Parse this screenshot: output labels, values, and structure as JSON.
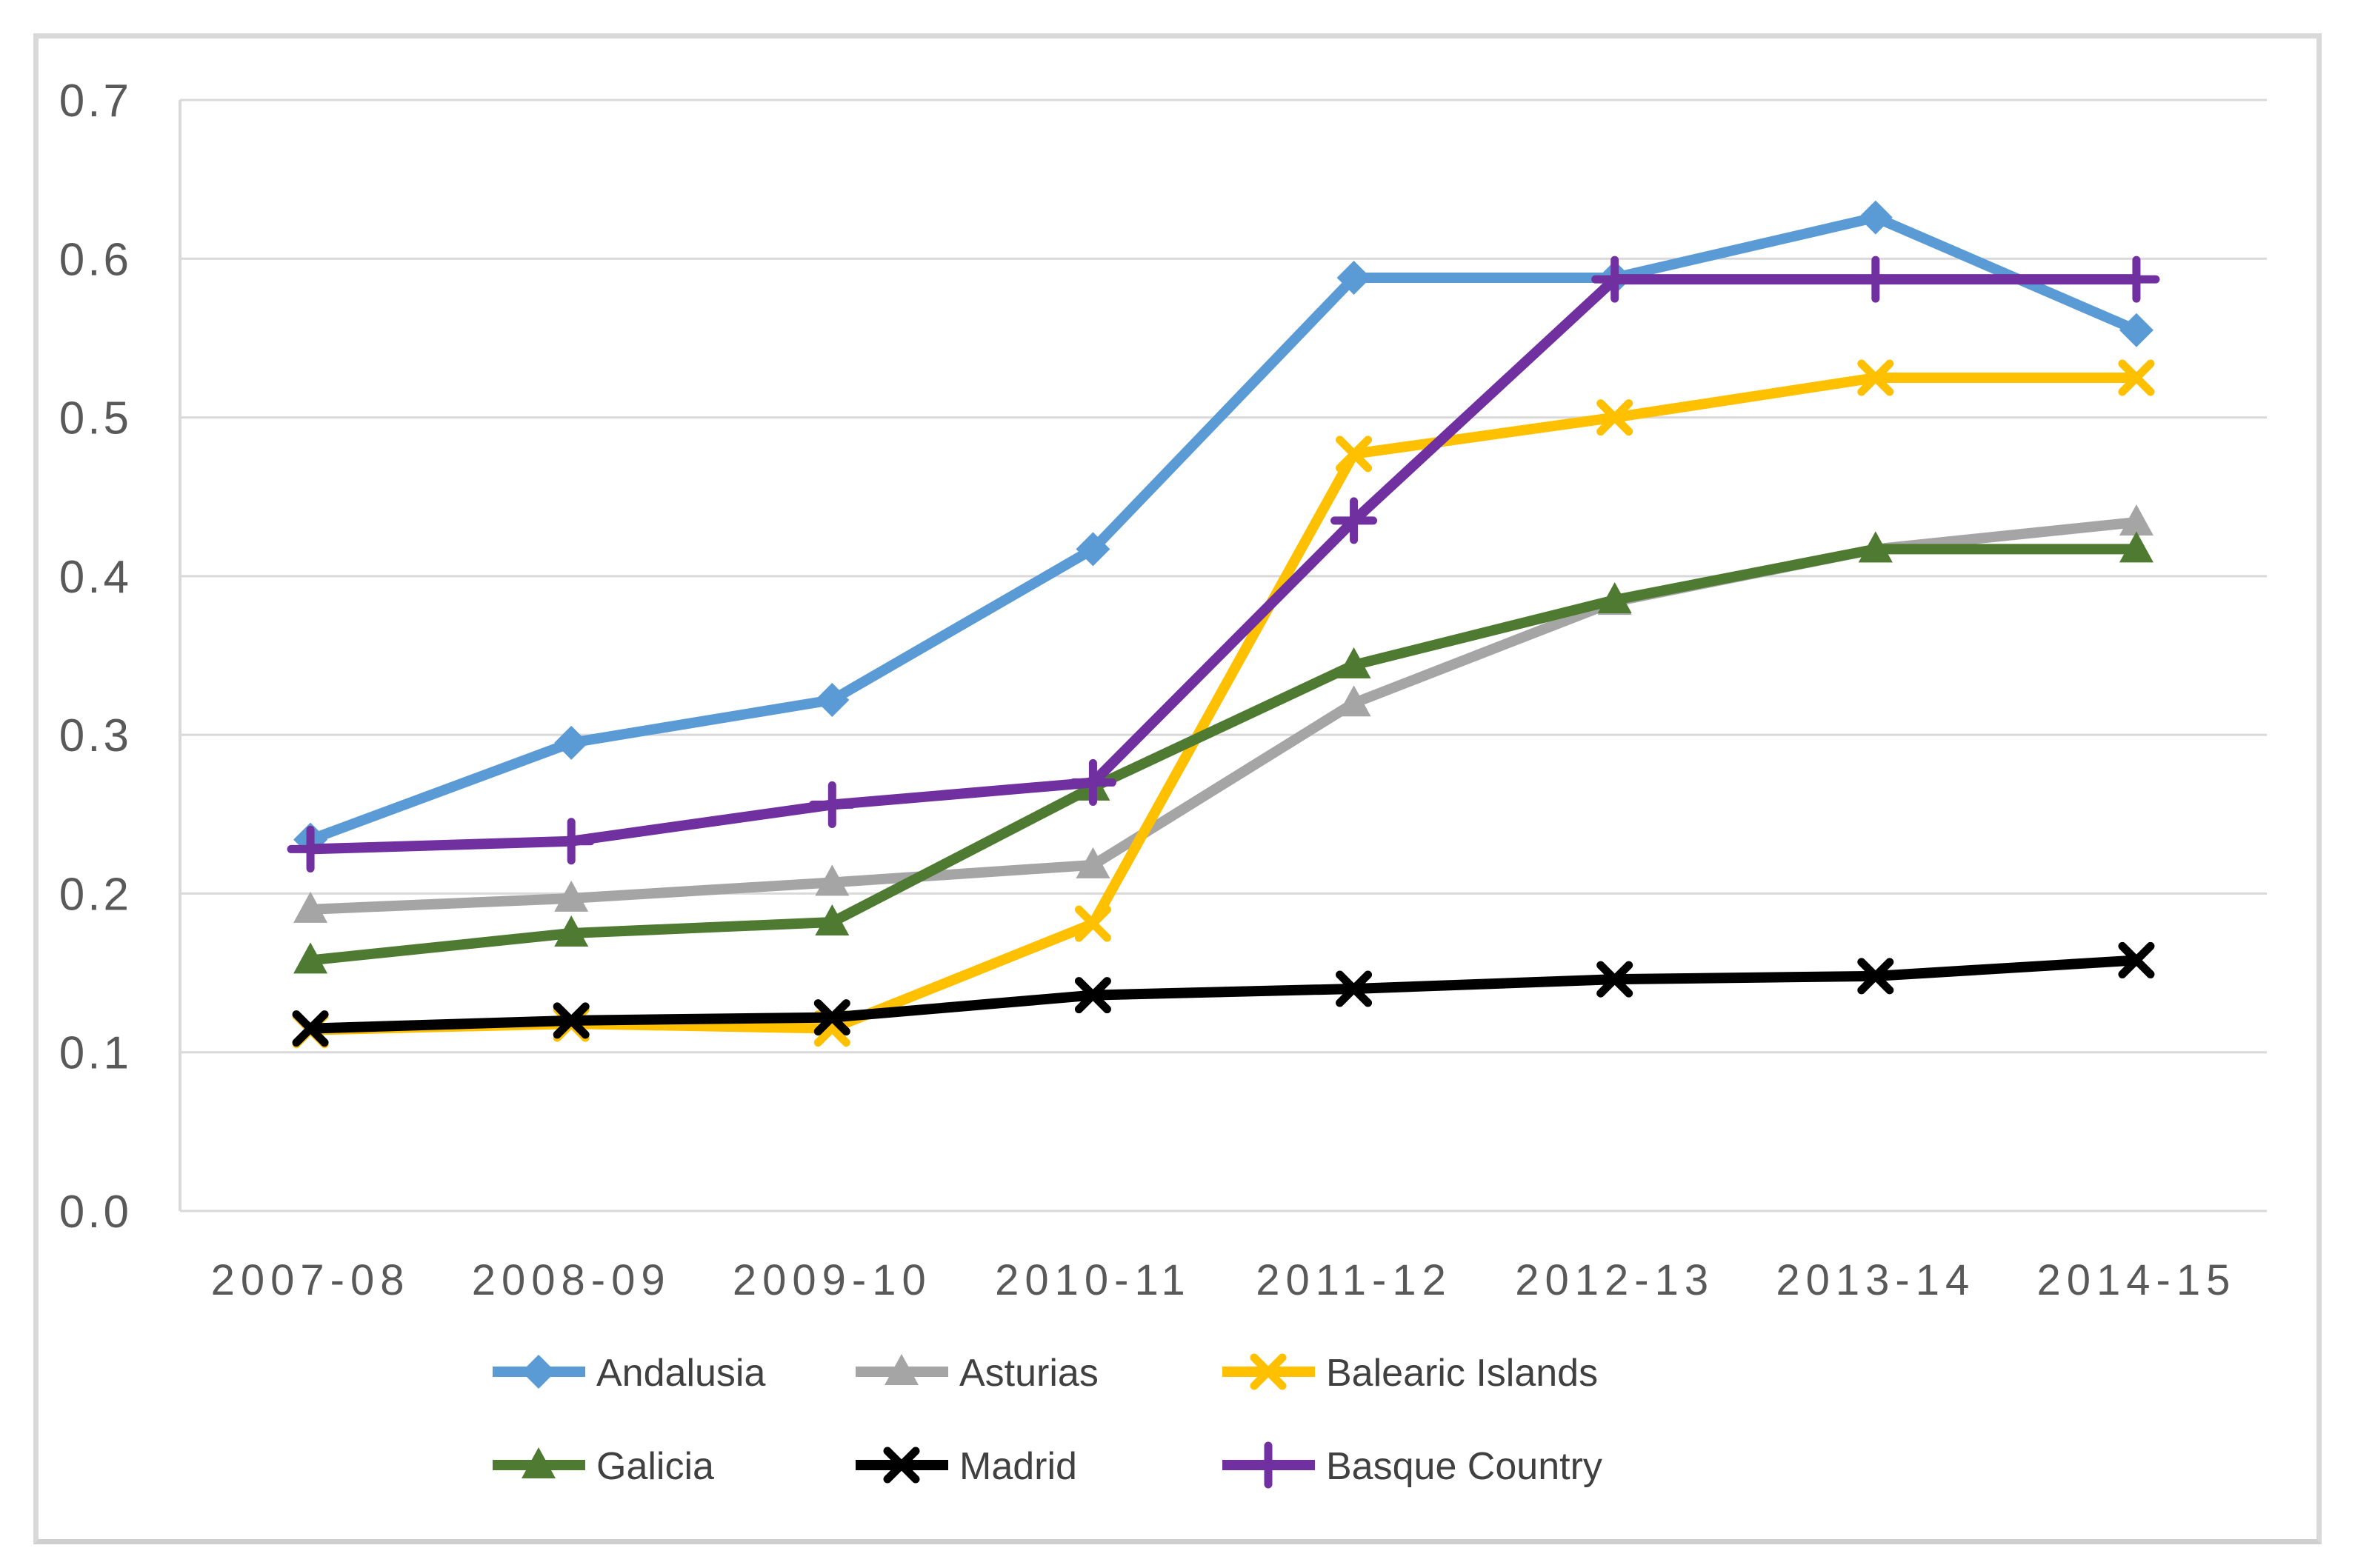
{
  "page": {
    "background_color": "#ffffff",
    "card_border_color": "#D9D9D9"
  },
  "chart_data": {
    "type": "line",
    "title": "",
    "xlabel": "",
    "ylabel": "",
    "categories": [
      "2007-08",
      "2008-09",
      "2009-10",
      "2010-11",
      "2011-12",
      "2012-13",
      "2013-14",
      "2014-15"
    ],
    "series": [
      {
        "name": "Andalusia",
        "color": "#5B9BD5",
        "marker": "diamond",
        "values": [
          0.234,
          0.295,
          0.322,
          0.417,
          0.588,
          0.588,
          0.626,
          0.555
        ]
      },
      {
        "name": "Asturias",
        "color": "#A5A5A5",
        "marker": "triangle",
        "values": [
          0.19,
          0.197,
          0.207,
          0.218,
          0.32,
          0.384,
          0.417,
          0.434
        ]
      },
      {
        "name": "Balearic Islands",
        "color": "#FFC000",
        "marker": "x",
        "values": [
          0.114,
          0.118,
          0.115,
          0.181,
          0.477,
          0.5,
          0.525,
          0.525
        ]
      },
      {
        "name": "Galicia",
        "color": "#4E7B31",
        "marker": "triangle",
        "values": [
          0.158,
          0.175,
          0.182,
          0.267,
          0.344,
          0.385,
          0.417,
          0.417
        ]
      },
      {
        "name": "Madrid",
        "color": "#000000",
        "marker": "x",
        "values": [
          0.115,
          0.12,
          0.122,
          0.136,
          0.14,
          0.146,
          0.148,
          0.158
        ]
      },
      {
        "name": "Basque Country",
        "color": "#7030A0",
        "marker": "plus",
        "values": [
          0.228,
          0.233,
          0.256,
          0.27,
          0.435,
          0.587,
          0.587,
          0.587
        ]
      }
    ],
    "y_axis": {
      "min": 0.0,
      "max": 0.7,
      "step": 0.1,
      "tick_labels": [
        "0.0",
        "0.1",
        "0.2",
        "0.3",
        "0.4",
        "0.5",
        "0.6",
        "0.7"
      ]
    },
    "x_axis": {
      "tick_labels": [
        "2007-08",
        "2008-09",
        "2009-10",
        "2010-11",
        "2011-12",
        "2012-13",
        "2013-14",
        "2014-15"
      ]
    },
    "grid": true,
    "gridline_color": "#D9D9D9",
    "axis_line_color": "#D9D9D9",
    "tick_label_color": "#595959",
    "legend_text_color": "#404040",
    "legend_position": "bottom",
    "legend_rows": [
      [
        "Andalusia",
        "Asturias",
        "Balearic Islands"
      ],
      [
        "Galicia",
        "Madrid",
        "Basque Country"
      ]
    ]
  }
}
